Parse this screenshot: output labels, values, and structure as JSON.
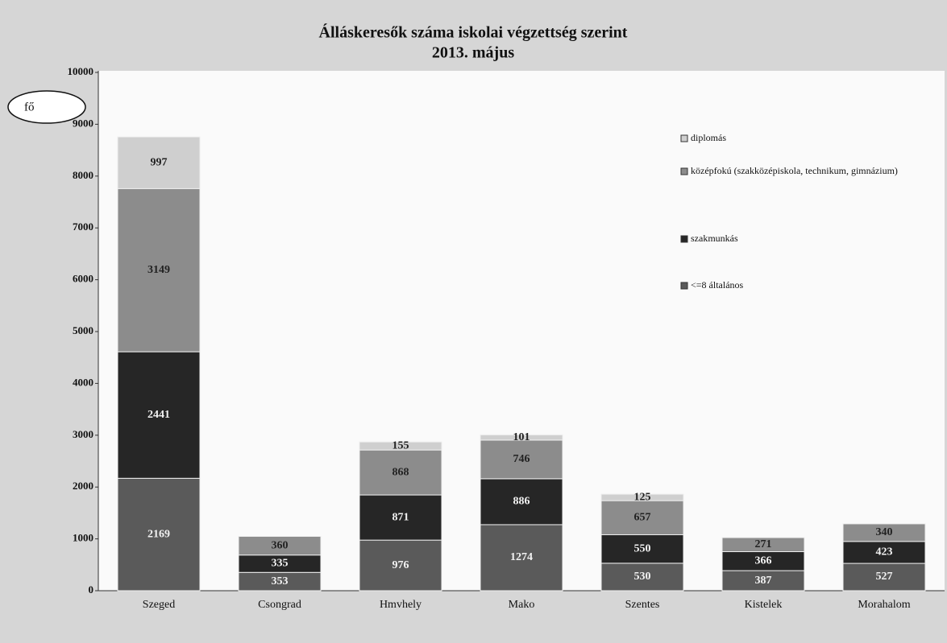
{
  "chart_data": {
    "type": "bar",
    "stacked": true,
    "title": "Álláskeresők száma iskolai végzettség szerint",
    "subtitle": "2013. május",
    "annotation": "fő",
    "categories": [
      "Szeged",
      "Csongrad",
      "Hmvhely",
      "Mako",
      "Szentes",
      "Kistelek",
      "Morahalom"
    ],
    "series": [
      {
        "name": "<=8 általános",
        "color": "#5a5a5a",
        "values": [
          2169,
          353,
          976,
          1274,
          530,
          387,
          527
        ]
      },
      {
        "name": "szakmunkás",
        "color": "#262626",
        "values": [
          2441,
          335,
          871,
          886,
          550,
          366,
          423
        ]
      },
      {
        "name": "középfokú (szakközépiskola, technikum, gimnázium)",
        "color": "#8c8c8c",
        "values": [
          3149,
          360,
          868,
          746,
          657,
          271,
          340
        ]
      },
      {
        "name": "diplomás",
        "color": "#cfcfcf",
        "values": [
          997,
          null,
          155,
          101,
          125,
          null,
          null
        ]
      }
    ],
    "ylim": [
      0,
      10000
    ],
    "yticks": [
      0,
      1000,
      2000,
      3000,
      4000,
      5000,
      6000,
      7000,
      8000,
      9000,
      10000
    ],
    "legend": "right"
  }
}
